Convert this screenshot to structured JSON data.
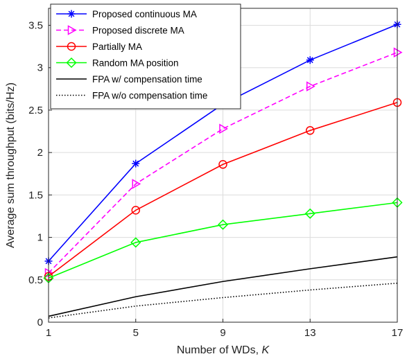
{
  "chart_data": {
    "type": "line",
    "xlabel": "Number of WDs, ",
    "xlabel_var": "K",
    "ylabel": "Average sum throughput (bits/Hz)",
    "x": [
      1,
      5,
      9,
      13,
      17
    ],
    "xticks": [
      "1",
      "5",
      "9",
      "13",
      "17"
    ],
    "yticks": [
      "0",
      "0.5",
      "1",
      "1.5",
      "2",
      "2.5",
      "3",
      "3.5"
    ],
    "xlim": [
      1,
      17
    ],
    "ylim": [
      0,
      3.7
    ],
    "grid": true,
    "legend_position": "top-left",
    "series": [
      {
        "name": "Proposed continuous MA",
        "color": "#0000ff",
        "dash": "solid",
        "marker": "asterisk",
        "values": [
          0.72,
          1.87,
          2.57,
          3.09,
          3.51
        ]
      },
      {
        "name": "Proposed discrete MA",
        "color": "#ff00ff",
        "dash": "dashed",
        "marker": "triangle-right",
        "values": [
          0.58,
          1.63,
          2.28,
          2.78,
          3.18
        ]
      },
      {
        "name": "Partially MA",
        "color": "#ff0000",
        "dash": "solid",
        "marker": "circle",
        "values": [
          0.54,
          1.32,
          1.86,
          2.26,
          2.59
        ]
      },
      {
        "name": "Random MA position",
        "color": "#00ff00",
        "dash": "solid",
        "marker": "diamond",
        "values": [
          0.52,
          0.94,
          1.15,
          1.28,
          1.41
        ]
      },
      {
        "name": "FPA w/ compensation time",
        "color": "#000000",
        "dash": "solid",
        "marker": "none",
        "values": [
          0.07,
          0.3,
          0.48,
          0.63,
          0.77
        ]
      },
      {
        "name": "FPA w/o compensation time",
        "color": "#000000",
        "dash": "dotted",
        "marker": "none",
        "values": [
          0.05,
          0.19,
          0.29,
          0.38,
          0.46
        ]
      }
    ]
  }
}
